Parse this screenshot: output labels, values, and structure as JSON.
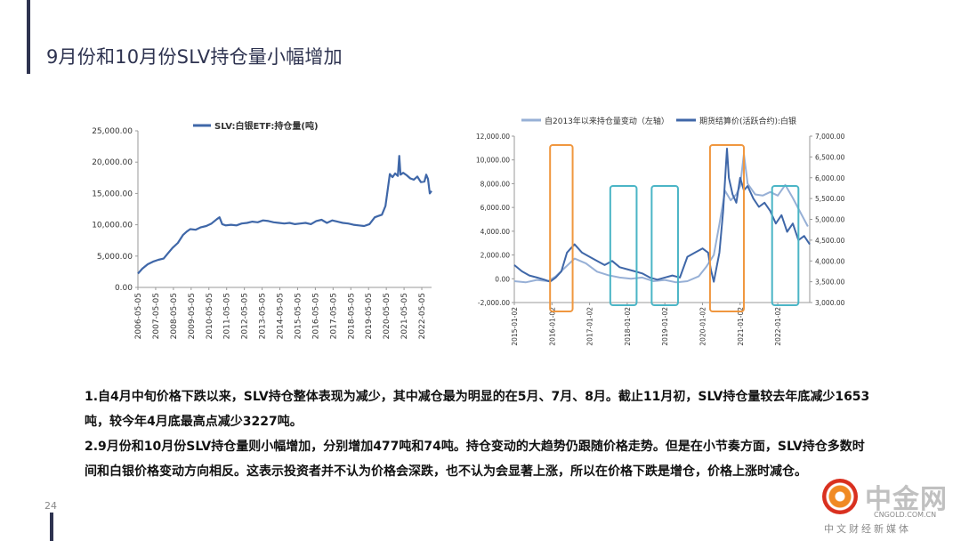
{
  "slide": {
    "title": "9月份和10月份SLV持仓量小幅增加",
    "page_number": "24"
  },
  "body": {
    "p1": "1.自4月中旬价格下跌以来，SLV持仓整体表现为减少，其中减仓最为明显的在5月、7月、8月。截止11月初，SLV持仓量较去年底减少1653吨，较今年4月底最高点减少3227吨。",
    "p2": "2.9月份和10月份SLV持仓量则小幅增加，分别增加477吨和74吨。持仓变动的大趋势仍跟随价格走势。但是在小节奏方面，SLV持仓多数时间和白银价格变动方向相反。这表示投资者并不认为价格会深跌，也不认为会显著上涨，所以在价格下跌是增仓，价格上涨时减仓。"
  },
  "watermark": {
    "main": "中金网",
    "url": "CNGOLD.COM.CN",
    "sub": "中文财经新媒体"
  },
  "colors": {
    "title": "#2e3350",
    "series_dark": "#3f67a8",
    "series_light": "#97b0d6",
    "box_orange": "#f0973f",
    "box_cyan": "#4bb5c6"
  },
  "chart_data": [
    {
      "type": "line",
      "title": "",
      "legend": [
        "SLV:白银ETF:持仓量(吨)"
      ],
      "legend_position": "top",
      "x_tick_labels": [
        "2006-05-05",
        "2007-05-05",
        "2008-05-05",
        "2009-05-05",
        "2010-05-05",
        "2011-05-05",
        "2012-05-05",
        "2013-05-05",
        "2014-05-05",
        "2015-05-05",
        "2016-05-05",
        "2017-05-05",
        "2018-05-05",
        "2019-05-05",
        "2020-05-05",
        "2021-05-05",
        "2022-05-05"
      ],
      "y_tick_labels": [
        "25,000.00",
        "20,000.00",
        "15,000.00",
        "10,000.00",
        "5,000.00",
        "0.00"
      ],
      "ylim": [
        0,
        25000
      ],
      "xlim": [
        2006.35,
        2022.9
      ],
      "grid": false,
      "series": [
        {
          "name": "SLV:白银ETF:持仓量(吨)",
          "x": [
            2006.35,
            2006.6,
            2006.9,
            2007.2,
            2007.5,
            2007.8,
            2008.0,
            2008.3,
            2008.6,
            2008.9,
            2009.1,
            2009.3,
            2009.6,
            2009.9,
            2010.2,
            2010.5,
            2010.8,
            2010.95,
            2011.1,
            2011.3,
            2011.6,
            2011.9,
            2012.2,
            2012.5,
            2012.8,
            2013.1,
            2013.4,
            2013.7,
            2014.0,
            2014.3,
            2014.6,
            2014.9,
            2015.2,
            2015.5,
            2015.8,
            2016.1,
            2016.4,
            2016.7,
            2017.0,
            2017.3,
            2017.6,
            2017.9,
            2018.2,
            2018.5,
            2018.8,
            2019.1,
            2019.4,
            2019.7,
            2019.9,
            2020.1,
            2020.3,
            2020.45,
            2020.55,
            2020.7,
            2020.85,
            2021.0,
            2021.08,
            2021.15,
            2021.3,
            2021.5,
            2021.7,
            2021.9,
            2022.1,
            2022.3,
            2022.5,
            2022.6,
            2022.7,
            2022.8,
            2022.9
          ],
          "values": [
            2200,
            3000,
            3700,
            4100,
            4400,
            4600,
            5300,
            6300,
            7100,
            8400,
            8900,
            9300,
            9200,
            9600,
            9800,
            10200,
            10900,
            11200,
            10100,
            9900,
            10000,
            9900,
            10200,
            10300,
            10500,
            10400,
            10700,
            10600,
            10400,
            10300,
            10200,
            10300,
            10100,
            10200,
            10300,
            10100,
            10600,
            10800,
            10300,
            10700,
            10500,
            10300,
            10200,
            10000,
            9900,
            9800,
            10100,
            11200,
            11400,
            11600,
            13000,
            16000,
            18100,
            17600,
            18200,
            17800,
            21000,
            18000,
            18300,
            17900,
            17400,
            17200,
            17700,
            16800,
            16900,
            18000,
            17300,
            15000,
            15400
          ]
        }
      ]
    },
    {
      "type": "line",
      "title": "",
      "legend": [
        "自2013年以来持仓量变动（左轴）",
        "期货结算价(活跃合约):白银"
      ],
      "legend_position": "top",
      "x_tick_labels": [
        "2015-01-02",
        "2016-01-02",
        "2017-01-02",
        "2018-01-02",
        "2019-01-02",
        "2020-01-02",
        "2021-01-02",
        "2022-01-02"
      ],
      "y_left_tick_labels": [
        "12,000.00",
        "10,000.00",
        "8,000.00",
        "6,000.00",
        "4,000.00",
        "2,000.00",
        "0.00",
        "-2,000.00"
      ],
      "y_right_tick_labels": [
        "7,000.00",
        "6,500.00",
        "6,000.00",
        "5,500.00",
        "5,000.00",
        "4,500.00",
        "4,000.00",
        "3,500.00",
        "3,000.00"
      ],
      "ylim_left": [
        -2000,
        12000
      ],
      "ylim_right": [
        3000,
        7000
      ],
      "xlim": [
        2015.0,
        2022.85
      ],
      "grid": false,
      "highlight_boxes": [
        {
          "from": 2015.95,
          "to": 2016.55,
          "color": "orange"
        },
        {
          "from": 2017.55,
          "to": 2018.25,
          "color": "cyan"
        },
        {
          "from": 2018.65,
          "to": 2019.35,
          "color": "cyan"
        },
        {
          "from": 2020.2,
          "to": 2021.1,
          "color": "orange"
        },
        {
          "from": 2021.85,
          "to": 2022.55,
          "color": "cyan"
        }
      ],
      "series": [
        {
          "name": "自2013年以来持仓量变动（左轴）",
          "axis": "left",
          "x": [
            2015.0,
            2015.3,
            2015.6,
            2015.9,
            2016.1,
            2016.3,
            2016.6,
            2016.9,
            2017.2,
            2017.5,
            2017.8,
            2018.1,
            2018.4,
            2018.7,
            2019.0,
            2019.3,
            2019.6,
            2019.9,
            2020.1,
            2020.3,
            2020.45,
            2020.6,
            2020.75,
            2020.9,
            2021.0,
            2021.1,
            2021.2,
            2021.4,
            2021.6,
            2021.8,
            2022.0,
            2022.2,
            2022.4,
            2022.6,
            2022.8
          ],
          "values": [
            -200,
            -300,
            -100,
            -200,
            200,
            800,
            1700,
            1300,
            600,
            300,
            100,
            0,
            100,
            -200,
            -100,
            -300,
            -200,
            200,
            1000,
            2000,
            4600,
            7400,
            6600,
            7100,
            7800,
            10500,
            8000,
            7100,
            7000,
            7300,
            7000,
            7900,
            6800,
            5600,
            4400
          ]
        },
        {
          "name": "期货结算价(活跃合约):白银",
          "axis": "right",
          "x": [
            2015.0,
            2015.2,
            2015.4,
            2015.6,
            2015.8,
            2015.95,
            2016.1,
            2016.25,
            2016.4,
            2016.5,
            2016.6,
            2016.8,
            2017.0,
            2017.2,
            2017.4,
            2017.6,
            2017.8,
            2018.0,
            2018.2,
            2018.4,
            2018.6,
            2018.8,
            2019.0,
            2019.2,
            2019.4,
            2019.6,
            2019.8,
            2020.0,
            2020.15,
            2020.22,
            2020.3,
            2020.45,
            2020.55,
            2020.65,
            2020.7,
            2020.8,
            2020.9,
            2021.0,
            2021.1,
            2021.2,
            2021.35,
            2021.5,
            2021.65,
            2021.8,
            2021.95,
            2022.1,
            2022.25,
            2022.4,
            2022.55,
            2022.7,
            2022.85
          ],
          "values": [
            3900,
            3750,
            3650,
            3600,
            3550,
            3500,
            3600,
            3750,
            4200,
            4300,
            4400,
            4200,
            4100,
            4000,
            3900,
            4000,
            3850,
            3800,
            3750,
            3700,
            3600,
            3550,
            3600,
            3650,
            3600,
            4100,
            4200,
            4300,
            4200,
            3800,
            3500,
            4200,
            5200,
            6700,
            6000,
            5600,
            5400,
            6000,
            5700,
            5800,
            5500,
            5300,
            5400,
            5200,
            4900,
            5100,
            4700,
            4900,
            4500,
            4600,
            4400
          ]
        }
      ]
    }
  ]
}
